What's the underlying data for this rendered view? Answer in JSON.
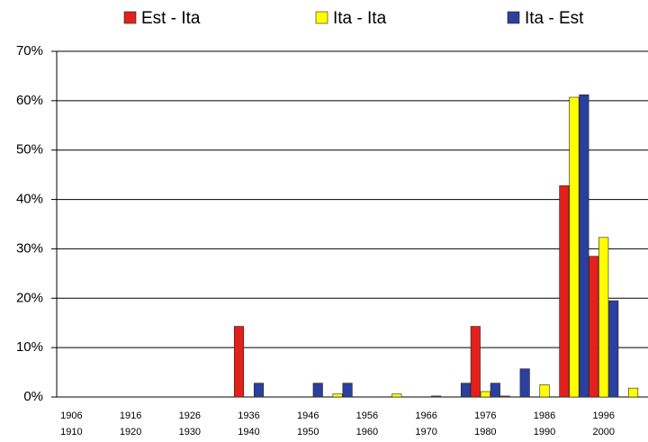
{
  "chart_data": {
    "type": "bar",
    "categories": [
      "1906\n1910",
      null,
      "1916\n1920",
      null,
      "1926\n1930",
      null,
      "1936\n1940",
      null,
      "1946\n1950",
      null,
      "1956\n1960",
      null,
      "1966\n1970",
      null,
      "1976\n1980",
      null,
      "1986\n1990",
      null,
      "1996\n2000",
      null
    ],
    "series": [
      {
        "name": "Est - Ita",
        "color": "#e3201b",
        "values": [
          0,
          0,
          0,
          0,
          0,
          0,
          14.3,
          0,
          0,
          0,
          0,
          0,
          0,
          0,
          14.3,
          0.2,
          0,
          42.8,
          28.5,
          0
        ]
      },
      {
        "name": "Ita - Ita",
        "color": "#ffff00",
        "values": [
          0,
          0,
          0,
          0,
          0,
          0,
          0,
          0,
          0,
          0.6,
          0,
          0.6,
          0,
          0,
          1.1,
          0,
          2.5,
          60.7,
          32.3,
          1.8
        ]
      },
      {
        "name": "Ita - Est",
        "color": "#2b3f9e",
        "values": [
          0,
          0,
          0,
          0,
          0,
          0,
          2.8,
          0,
          2.8,
          2.8,
          0,
          0,
          0.2,
          2.8,
          2.8,
          5.7,
          0,
          61.2,
          19.5,
          0
        ]
      }
    ],
    "ylim": [
      0,
      70
    ],
    "yticks": [
      {
        "value": 0,
        "label": "0%"
      },
      {
        "value": 10,
        "label": "10%"
      },
      {
        "value": 20,
        "label": "20%"
      },
      {
        "value": 30,
        "label": "30%"
      },
      {
        "value": 40,
        "label": "40%"
      },
      {
        "value": 50,
        "label": "50%"
      },
      {
        "value": 60,
        "label": "60%"
      },
      {
        "value": 70,
        "label": "70%"
      }
    ],
    "grid": true,
    "legend": "top"
  }
}
